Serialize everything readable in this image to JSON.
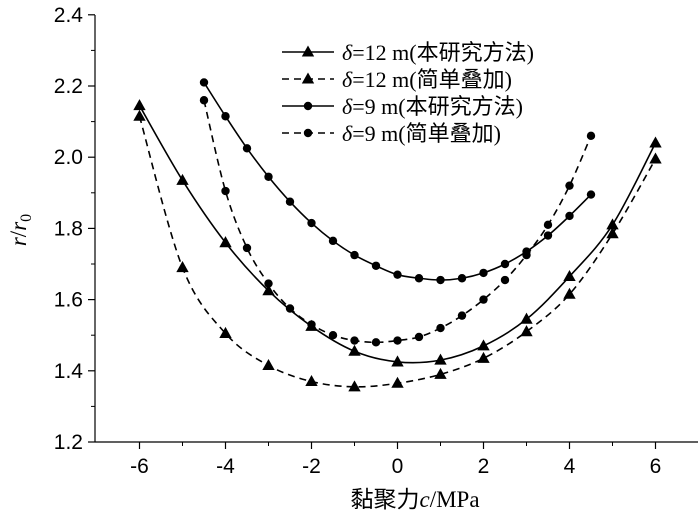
{
  "chart_data": {
    "type": "line",
    "title": "",
    "xlabel": "黏聚力c/MPa",
    "xlabel_parts": {
      "prefix": "黏聚力",
      "var": "c",
      "suffix": "/MPa"
    },
    "ylabel": "r/r0",
    "ylabel_parts": {
      "num": "r",
      "sep": "/",
      "den": "r",
      "sub": "0"
    },
    "xlim": [
      -7.2,
      7
    ],
    "ylim": [
      1.2,
      2.4
    ],
    "xticks": [
      -6,
      -4,
      -2,
      0,
      2,
      4,
      6
    ],
    "xtick_labels": [
      "-6",
      "-4",
      "-2",
      "0",
      "2",
      "4",
      "6"
    ],
    "yticks": [
      1.2,
      1.4,
      1.6,
      1.8,
      2.0,
      2.2,
      2.4
    ],
    "ytick_labels": [
      "1.2",
      "1.4",
      "1.6",
      "1.8",
      "2.0",
      "2.2",
      "2.4"
    ],
    "legend_position": "top-center",
    "series": [
      {
        "name": "δ=12 m(本研究方法)",
        "legend_var": "δ",
        "legend_rest": "=12 m(本研究方法)",
        "marker": "triangle",
        "line": "solid",
        "x": [
          -6,
          -5,
          -4,
          -3,
          -2,
          -1,
          0,
          1,
          2,
          3,
          4,
          5,
          6
        ],
        "y": [
          2.145,
          1.935,
          1.76,
          1.625,
          1.525,
          1.455,
          1.425,
          1.43,
          1.47,
          1.545,
          1.665,
          1.81,
          2.04
        ]
      },
      {
        "name": "δ=12 m(简单叠加)",
        "legend_var": "δ",
        "legend_rest": "=12 m(简单叠加)",
        "marker": "triangle",
        "line": "dashed",
        "x": [
          -6,
          -5,
          -4,
          -3,
          -2,
          -1,
          0,
          1,
          2,
          3,
          4,
          5,
          6
        ],
        "y": [
          2.115,
          1.69,
          1.505,
          1.415,
          1.37,
          1.355,
          1.365,
          1.39,
          1.435,
          1.51,
          1.615,
          1.785,
          1.995
        ]
      },
      {
        "name": "δ=9 m(本研究方法)",
        "legend_var": "δ",
        "legend_rest": "=9 m(本研究方法)",
        "marker": "circle",
        "line": "solid",
        "x": [
          -4.5,
          -4,
          -3.5,
          -3,
          -2.5,
          -2,
          -1.5,
          -1,
          -0.5,
          0,
          0.5,
          1,
          1.5,
          2,
          2.5,
          3,
          3.5,
          4,
          4.5
        ],
        "y": [
          2.21,
          2.115,
          2.025,
          1.945,
          1.875,
          1.815,
          1.765,
          1.725,
          1.695,
          1.67,
          1.66,
          1.655,
          1.66,
          1.675,
          1.7,
          1.735,
          1.78,
          1.835,
          1.895
        ]
      },
      {
        "name": "δ=9 m(简单叠加)",
        "legend_var": "δ",
        "legend_rest": "=9 m(简单叠加)",
        "marker": "circle",
        "line": "dashed",
        "x": [
          -4.5,
          -4,
          -3.5,
          -3,
          -2.5,
          -2,
          -1.5,
          -1,
          -0.5,
          0,
          0.5,
          1,
          1.5,
          2,
          2.5,
          3,
          3.5,
          4,
          4.5
        ],
        "y": [
          2.16,
          1.905,
          1.745,
          1.645,
          1.575,
          1.53,
          1.5,
          1.485,
          1.48,
          1.485,
          1.495,
          1.52,
          1.555,
          1.6,
          1.655,
          1.725,
          1.81,
          1.92,
          2.06
        ]
      }
    ]
  }
}
